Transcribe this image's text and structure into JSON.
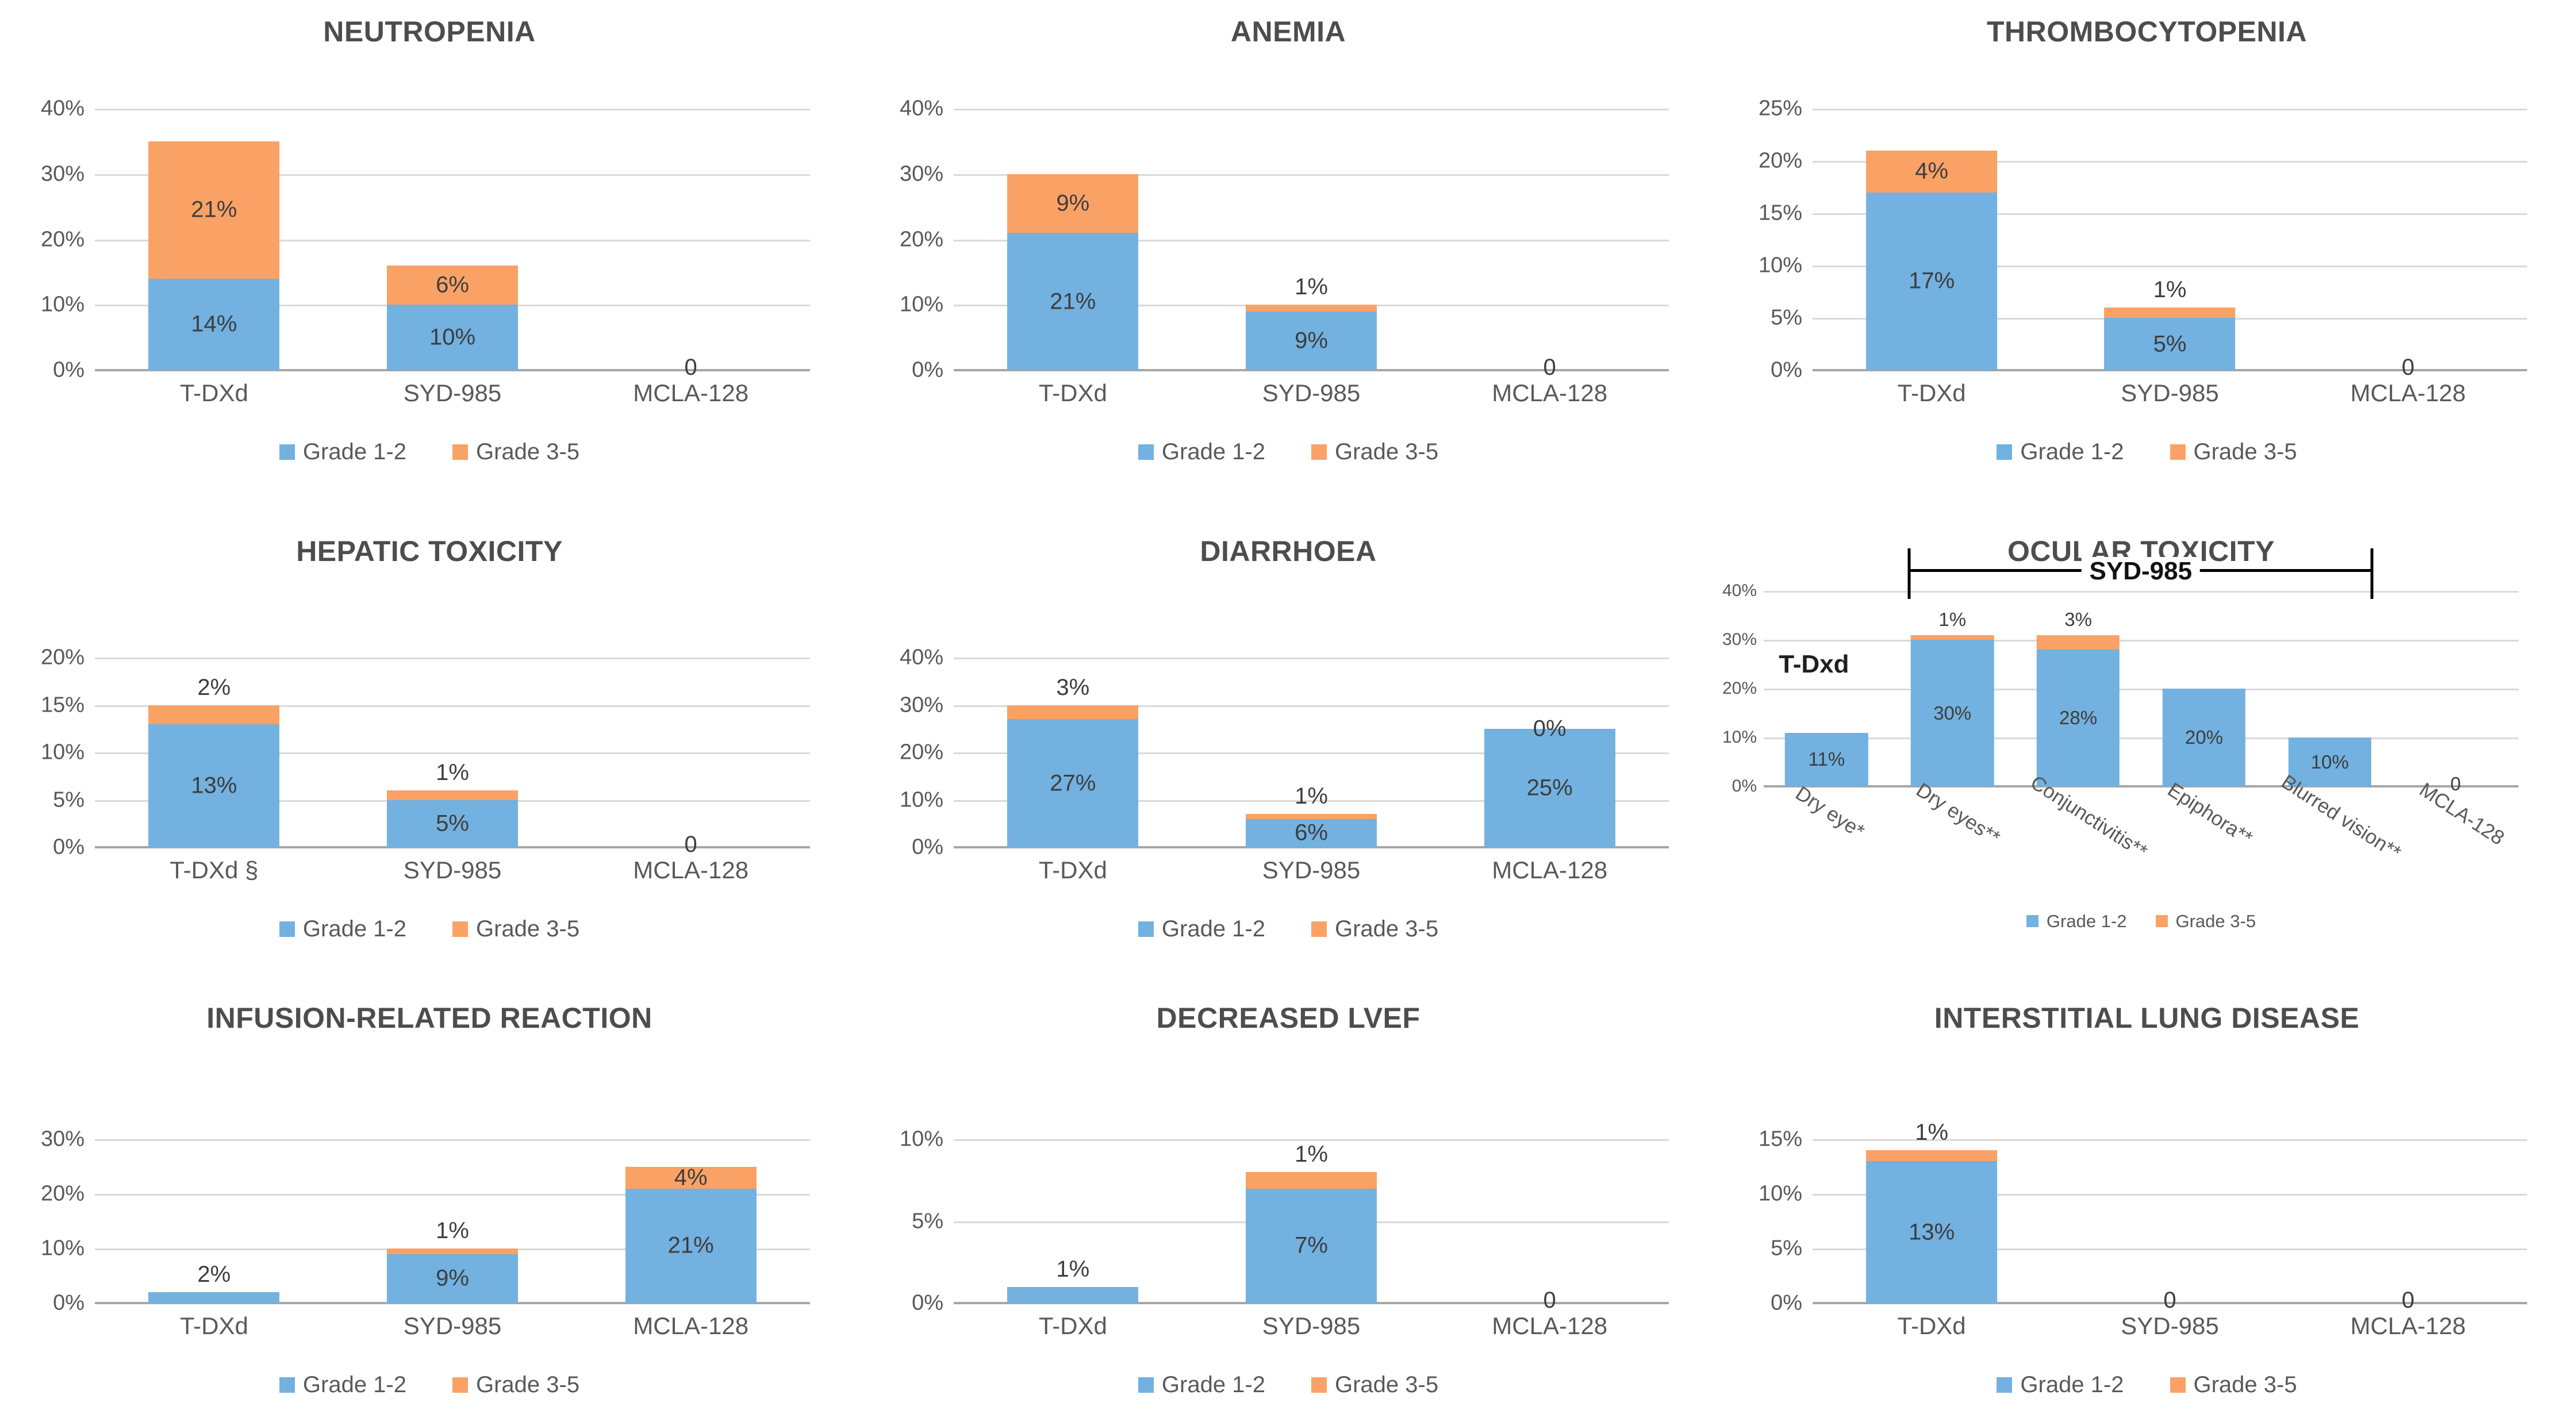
{
  "colors": {
    "grade12": "#72B1E0",
    "grade35": "#FAA266",
    "title_text": "#4d4d4d",
    "axis_text": "#595959",
    "value_text": "#3d3d3d",
    "gridline": "#d9d9d9",
    "baseline": "#a6a6a6",
    "bracket": "#000000"
  },
  "legend": {
    "items": [
      {
        "key": "grade12",
        "label": "Grade 1-2"
      },
      {
        "key": "grade35",
        "label": "Grade 3-5"
      }
    ]
  },
  "chart_data": [
    {
      "id": "neutropenia",
      "layout": "row1",
      "type": "bar",
      "stacked": true,
      "title": "NEUTROPENIA",
      "ylim": [
        0,
        40
      ],
      "yticks": [
        "40%",
        "30%",
        "20%",
        "10%",
        "0%"
      ],
      "series_names": [
        "Grade 1-2",
        "Grade 3-5"
      ],
      "categories": [
        {
          "label": "T-DXd",
          "g12": 14,
          "g35": 21,
          "labels": [
            {
              "text": "14%",
              "pos": "inside_g12"
            },
            {
              "text": "21%",
              "pos": "inside_g35"
            }
          ]
        },
        {
          "label": "SYD-985",
          "g12": 10,
          "g35": 6,
          "labels": [
            {
              "text": "10%",
              "pos": "inside_g12"
            },
            {
              "text": "6%",
              "pos": "inside_g35"
            }
          ]
        },
        {
          "label": "MCLA-128",
          "g12": 0,
          "g35": 0,
          "labels": [
            {
              "text": "0",
              "pos": "zero"
            }
          ]
        }
      ]
    },
    {
      "id": "anemia",
      "layout": "row1",
      "type": "bar",
      "stacked": true,
      "title": "ANEMIA",
      "ylim": [
        0,
        40
      ],
      "yticks": [
        "40%",
        "30%",
        "20%",
        "10%",
        "0%"
      ],
      "series_names": [
        "Grade 1-2",
        "Grade 3-5"
      ],
      "categories": [
        {
          "label": "T-DXd",
          "g12": 21,
          "g35": 9,
          "labels": [
            {
              "text": "21%",
              "pos": "inside_g12"
            },
            {
              "text": "9%",
              "pos": "inside_g35"
            }
          ]
        },
        {
          "label": "SYD-985",
          "g12": 9,
          "g35": 1,
          "labels": [
            {
              "text": "9%",
              "pos": "inside_g12"
            },
            {
              "text": "1%",
              "pos": "above"
            }
          ]
        },
        {
          "label": "MCLA-128",
          "g12": 0,
          "g35": 0,
          "labels": [
            {
              "text": "0",
              "pos": "zero"
            }
          ]
        }
      ]
    },
    {
      "id": "thrombocytopenia",
      "layout": "row1",
      "type": "bar",
      "stacked": true,
      "title": "THROMBOCYTOPENIA",
      "ylim": [
        0,
        25
      ],
      "yticks": [
        "25%",
        "20%",
        "15%",
        "10%",
        "5%",
        "0%"
      ],
      "series_names": [
        "Grade 1-2",
        "Grade 3-5"
      ],
      "categories": [
        {
          "label": "T-DXd",
          "g12": 17,
          "g35": 4,
          "labels": [
            {
              "text": "17%",
              "pos": "inside_g12"
            },
            {
              "text": "4%",
              "pos": "inside_g35"
            }
          ]
        },
        {
          "label": "SYD-985",
          "g12": 5,
          "g35": 1,
          "labels": [
            {
              "text": "5%",
              "pos": "inside_g12"
            },
            {
              "text": "1%",
              "pos": "above"
            }
          ]
        },
        {
          "label": "MCLA-128",
          "g12": 0,
          "g35": 0,
          "labels": [
            {
              "text": "0",
              "pos": "zero"
            }
          ]
        }
      ]
    },
    {
      "id": "hepatic-toxicity",
      "layout": "row2",
      "type": "bar",
      "stacked": true,
      "title": "HEPATIC TOXICITY",
      "ylim": [
        0,
        20
      ],
      "yticks": [
        "20%",
        "15%",
        "10%",
        "5%",
        "0%"
      ],
      "series_names": [
        "Grade 1-2",
        "Grade 3-5"
      ],
      "categories": [
        {
          "label": "T-DXd §",
          "g12": 13,
          "g35": 2,
          "labels": [
            {
              "text": "13%",
              "pos": "inside_g12"
            },
            {
              "text": "2%",
              "pos": "above"
            }
          ]
        },
        {
          "label": "SYD-985",
          "g12": 5,
          "g35": 1,
          "labels": [
            {
              "text": "5%",
              "pos": "inside_g12"
            },
            {
              "text": "1%",
              "pos": "above"
            }
          ]
        },
        {
          "label": "MCLA-128",
          "g12": 0,
          "g35": 0,
          "labels": [
            {
              "text": "0",
              "pos": "zero"
            }
          ]
        }
      ]
    },
    {
      "id": "diarrhoea",
      "layout": "row2",
      "type": "bar",
      "stacked": true,
      "title": "DIARRHOEA",
      "ylim": [
        0,
        40
      ],
      "yticks": [
        "40%",
        "30%",
        "20%",
        "10%",
        "0%"
      ],
      "series_names": [
        "Grade 1-2",
        "Grade 3-5"
      ],
      "categories": [
        {
          "label": "T-DXd",
          "g12": 27,
          "g35": 3,
          "labels": [
            {
              "text": "27%",
              "pos": "inside_g12"
            },
            {
              "text": "3%",
              "pos": "above"
            }
          ]
        },
        {
          "label": "SYD-985",
          "g12": 6,
          "g35": 1,
          "labels": [
            {
              "text": "6%",
              "pos": "inside_g12"
            },
            {
              "text": "1%",
              "pos": "above"
            }
          ]
        },
        {
          "label": "MCLA-128",
          "g12": 25,
          "g35": 0,
          "labels": [
            {
              "text": "25%",
              "pos": "inside_g12"
            },
            {
              "text": "0%",
              "pos": "end"
            }
          ]
        }
      ]
    },
    {
      "id": "ocular-toxicity",
      "layout": "ocular",
      "type": "bar",
      "stacked": true,
      "title": "OCULAR TOXICITY",
      "ylim": [
        0,
        40
      ],
      "yticks": [
        "40%",
        "30%",
        "20%",
        "10%",
        "0%"
      ],
      "series_names": [
        "Grade 1-2",
        "Grade 3-5"
      ],
      "annotation": {
        "text": "T-Dxd",
        "x_frac": 0.02,
        "y_value": 25
      },
      "bracket": {
        "label": "SYD-985",
        "from_frac": 0.193,
        "to_frac": 0.806
      },
      "categories": [
        {
          "label": "Dry eye*",
          "g12": 11,
          "g35": 0,
          "labels": [
            {
              "text": "11%",
              "pos": "inside_g12"
            }
          ]
        },
        {
          "label": "Dry eyes**",
          "g12": 30,
          "g35": 1,
          "labels": [
            {
              "text": "30%",
              "pos": "inside_g12"
            },
            {
              "text": "1%",
              "pos": "above"
            }
          ]
        },
        {
          "label": "Conjunctivitis**",
          "g12": 28,
          "g35": 3,
          "labels": [
            {
              "text": "28%",
              "pos": "inside_g12"
            },
            {
              "text": "3%",
              "pos": "above"
            }
          ]
        },
        {
          "label": "Epiphora**",
          "g12": 20,
          "g35": 0,
          "labels": [
            {
              "text": "20%",
              "pos": "inside_g12"
            }
          ]
        },
        {
          "label": "Blurred vision**",
          "g12": 10,
          "g35": 0,
          "labels": [
            {
              "text": "10%",
              "pos": "inside_g12"
            }
          ]
        },
        {
          "label": "MCLA-128",
          "g12": 0,
          "g35": 0,
          "labels": [
            {
              "text": "0",
              "pos": "zero"
            }
          ]
        }
      ]
    },
    {
      "id": "infusion-related-reaction",
      "layout": "row3",
      "type": "bar",
      "stacked": true,
      "title": "INFUSION-RELATED REACTION",
      "ylim": [
        0,
        30
      ],
      "yticks": [
        "30%",
        "20%",
        "10%",
        "0%"
      ],
      "series_names": [
        "Grade 1-2",
        "Grade 3-5"
      ],
      "categories": [
        {
          "label": "T-DXd",
          "g12": 2,
          "g35": 0,
          "labels": [
            {
              "text": "2%",
              "pos": "above"
            }
          ]
        },
        {
          "label": "SYD-985",
          "g12": 9,
          "g35": 1,
          "labels": [
            {
              "text": "9%",
              "pos": "inside_g12"
            },
            {
              "text": "1%",
              "pos": "above"
            }
          ]
        },
        {
          "label": "MCLA-128",
          "g12": 21,
          "g35": 4,
          "labels": [
            {
              "text": "21%",
              "pos": "inside_g12"
            },
            {
              "text": "4%",
              "pos": "inside_g35"
            }
          ]
        }
      ]
    },
    {
      "id": "decreased-lvef",
      "layout": "row3",
      "type": "bar",
      "stacked": true,
      "title": "DECREASED LVEF",
      "ylim": [
        0,
        10
      ],
      "yticks": [
        "10%",
        "5%",
        "0%"
      ],
      "series_names": [
        "Grade 1-2",
        "Grade 3-5"
      ],
      "categories": [
        {
          "label": "T-DXd",
          "g12": 1,
          "g35": 0,
          "labels": [
            {
              "text": "1%",
              "pos": "above"
            }
          ]
        },
        {
          "label": "SYD-985",
          "g12": 7,
          "g35": 1,
          "labels": [
            {
              "text": "7%",
              "pos": "inside_g12"
            },
            {
              "text": "1%",
              "pos": "above"
            }
          ]
        },
        {
          "label": "MCLA-128",
          "g12": 0,
          "g35": 0,
          "labels": [
            {
              "text": "0",
              "pos": "zero"
            }
          ]
        }
      ]
    },
    {
      "id": "interstitial-lung-disease",
      "layout": "row3",
      "type": "bar",
      "stacked": true,
      "title": "INTERSTITIAL LUNG DISEASE",
      "ylim": [
        0,
        15
      ],
      "yticks": [
        "15%",
        "10%",
        "5%",
        "0%"
      ],
      "series_names": [
        "Grade 1-2",
        "Grade 3-5"
      ],
      "categories": [
        {
          "label": "T-DXd",
          "g12": 13,
          "g35": 1,
          "labels": [
            {
              "text": "13%",
              "pos": "inside_g12"
            },
            {
              "text": "1%",
              "pos": "above"
            }
          ]
        },
        {
          "label": "SYD-985",
          "g12": 0,
          "g35": 0,
          "labels": [
            {
              "text": "0",
              "pos": "zero"
            }
          ]
        },
        {
          "label": "MCLA-128",
          "g12": 0,
          "g35": 0,
          "labels": [
            {
              "text": "0",
              "pos": "zero"
            }
          ]
        }
      ]
    }
  ]
}
